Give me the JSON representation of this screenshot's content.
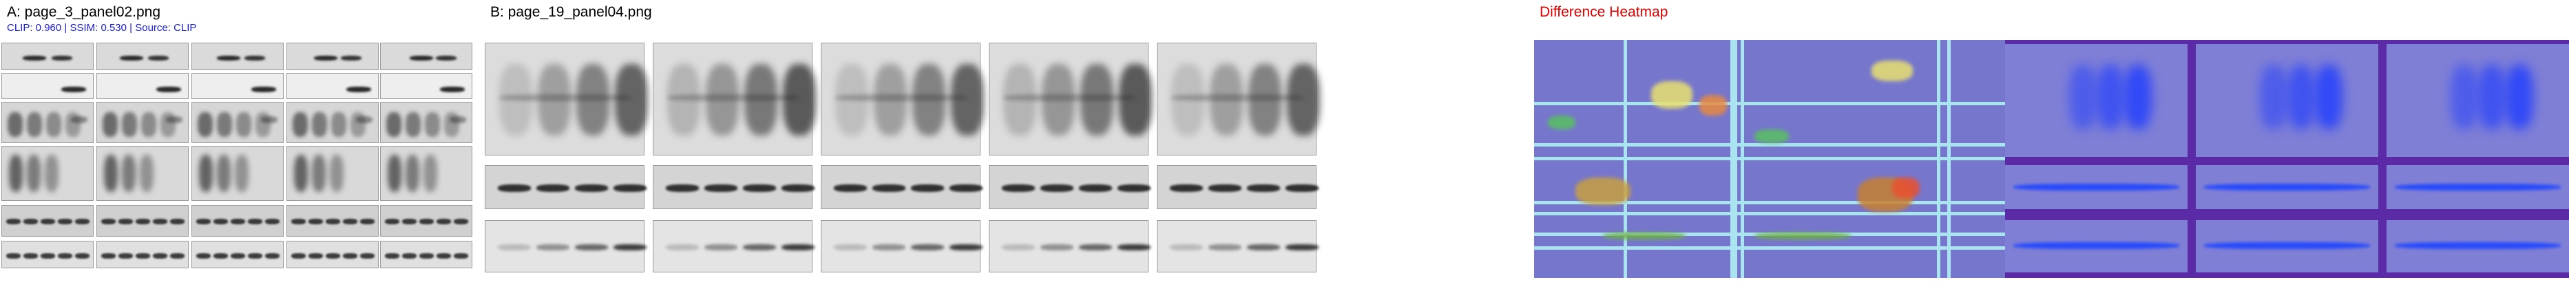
{
  "panel_a": {
    "title": "A: page_3_panel02.png",
    "metrics": "CLIP: 0.960 | SSIM: 0.530 | Source: CLIP"
  },
  "panel_b": {
    "title": "B: page_19_panel04.png"
  },
  "panel_c": {
    "title": "Difference Heatmap",
    "title_color": "#e00000"
  },
  "colors": {
    "blot_bg_light": "#e6e6e6",
    "blot_bg_mid": "#d2d2d2",
    "band_dark": "#1c1c1c",
    "heat_base": "#6f6fc8",
    "heat_deep": "#5a1aa0",
    "heat_grid": "#a9e4f0",
    "heat_hot": "#e8e070"
  }
}
